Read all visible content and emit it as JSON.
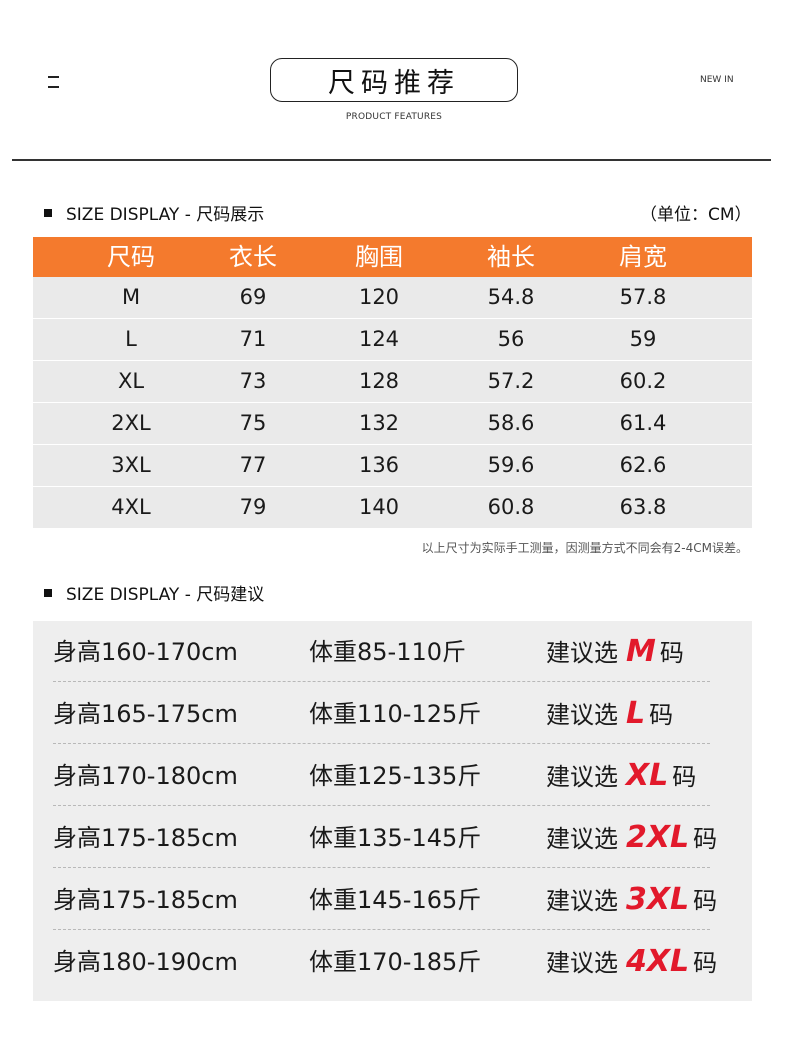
{
  "header": {
    "title": "尺码推荐",
    "subtitle": "PRODUCT FEATURES",
    "new_in": "NEW IN"
  },
  "size_display": {
    "heading": "SIZE DISPLAY - 尺码展示",
    "unit": "（单位：CM）",
    "columns": [
      "尺码",
      "衣长",
      "胸围",
      "袖长",
      "肩宽"
    ],
    "rows": [
      [
        "M",
        "69",
        "120",
        "54.8",
        "57.8"
      ],
      [
        "L",
        "71",
        "124",
        "56",
        "59"
      ],
      [
        "XL",
        "73",
        "128",
        "57.2",
        "60.2"
      ],
      [
        "2XL",
        "75",
        "132",
        "58.6",
        "61.4"
      ],
      [
        "3XL",
        "77",
        "136",
        "59.6",
        "62.6"
      ],
      [
        "4XL",
        "79",
        "140",
        "60.8",
        "63.8"
      ]
    ],
    "note": "以上尺寸为实际手工测量，因测量方式不同会有2-4CM误差。"
  },
  "size_advice": {
    "heading": "SIZE DISPLAY - 尺码建议",
    "prefix": "建议选",
    "suffix": "码",
    "rows": [
      {
        "height": "身高160-170cm",
        "weight": "体重85-110斤",
        "size": "M"
      },
      {
        "height": "身高165-175cm",
        "weight": "体重110-125斤",
        "size": "L"
      },
      {
        "height": "身高170-180cm",
        "weight": "体重125-135斤",
        "size": "XL"
      },
      {
        "height": "身高175-185cm",
        "weight": "体重135-145斤",
        "size": "2XL"
      },
      {
        "height": "身高175-185cm",
        "weight": "体重145-165斤",
        "size": "3XL"
      },
      {
        "height": "身高180-190cm",
        "weight": "体重170-185斤",
        "size": "4XL"
      }
    ]
  },
  "colors": {
    "accent_orange": "#f47a2d",
    "size_red": "#e2192b",
    "row_gray": "#eaeaea"
  }
}
